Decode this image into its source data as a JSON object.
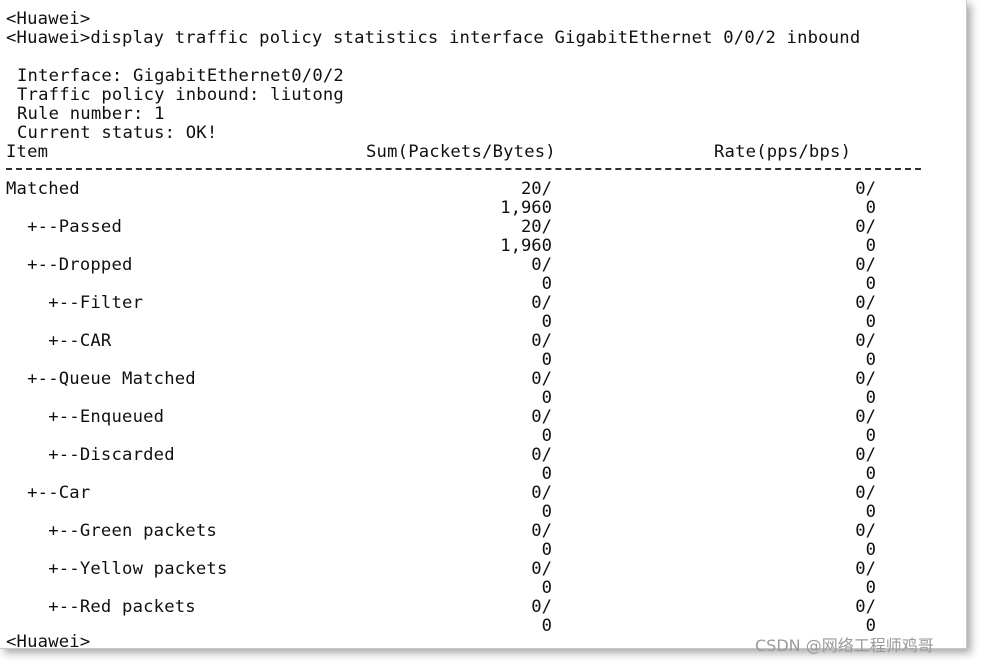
{
  "console": {
    "prompt_top": "<Huawei>",
    "command": "<Huawei>display traffic policy statistics interface GigabitEthernet 0/0/2 inbound",
    "interface_line": "Interface: GigabitEthernet0/0/2",
    "policy_line": "Traffic policy inbound: liutong",
    "rule_line": "Rule number: 1",
    "status_line": "Current status: OK!",
    "header": {
      "item": "Item",
      "sum": "Sum(Packets/Bytes)",
      "rate": "Rate(pps/bps)"
    },
    "rows": [
      {
        "item": "Matched",
        "sum_packets": "20/",
        "sum_bytes": "1,960",
        "rate_pps": "0/",
        "rate_bps": "0"
      },
      {
        "item": "  +--Passed",
        "sum_packets": "20/",
        "sum_bytes": "1,960",
        "rate_pps": "0/",
        "rate_bps": "0"
      },
      {
        "item": "  +--Dropped",
        "sum_packets": "0/",
        "sum_bytes": "0",
        "rate_pps": "0/",
        "rate_bps": "0"
      },
      {
        "item": "    +--Filter",
        "sum_packets": "0/",
        "sum_bytes": "0",
        "rate_pps": "0/",
        "rate_bps": "0"
      },
      {
        "item": "    +--CAR",
        "sum_packets": "0/",
        "sum_bytes": "0",
        "rate_pps": "0/",
        "rate_bps": "0"
      },
      {
        "item": "  +--Queue Matched",
        "sum_packets": "0/",
        "sum_bytes": "0",
        "rate_pps": "0/",
        "rate_bps": "0"
      },
      {
        "item": "    +--Enqueued",
        "sum_packets": "0/",
        "sum_bytes": "0",
        "rate_pps": "0/",
        "rate_bps": "0"
      },
      {
        "item": "    +--Discarded",
        "sum_packets": "0/",
        "sum_bytes": "0",
        "rate_pps": "0/",
        "rate_bps": "0"
      },
      {
        "item": "  +--Car",
        "sum_packets": "0/",
        "sum_bytes": "0",
        "rate_pps": "0/",
        "rate_bps": "0"
      },
      {
        "item": "    +--Green packets",
        "sum_packets": "0/",
        "sum_bytes": "0",
        "rate_pps": "0/",
        "rate_bps": "0"
      },
      {
        "item": "    +--Yellow packets",
        "sum_packets": "0/",
        "sum_bytes": "0",
        "rate_pps": "0/",
        "rate_bps": "0"
      },
      {
        "item": "    +--Red packets",
        "sum_packets": "0/",
        "sum_bytes": "0",
        "rate_pps": "0/",
        "rate_bps": "0"
      }
    ],
    "prompt_bottom": "<Huawei>"
  },
  "watermark": "CSDN @网络工程师鸡哥"
}
